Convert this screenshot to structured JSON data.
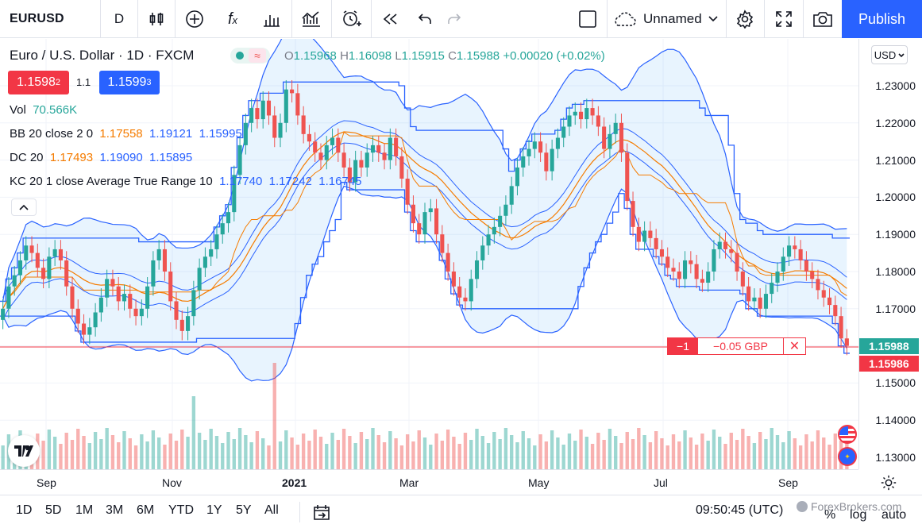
{
  "toolbar": {
    "symbol": "EURUSD",
    "interval": "D",
    "layout_name": "Unnamed",
    "publish_label": "Publish"
  },
  "legend": {
    "title": "Euro / U.S. Dollar · 1D · FXCM",
    "ohlc": {
      "o_label": "O",
      "o": "1.15968",
      "h_label": "H",
      "h": "1.16098",
      "l_label": "L",
      "l": "1.15915",
      "c_label": "C",
      "c": "1.15988",
      "change": "+0.00020 (+0.02%)"
    },
    "sell_price": "1.1598",
    "sell_sup": "2",
    "spread": "1.1",
    "buy_price": "1.1599",
    "buy_sup": "3",
    "vol_label": "Vol",
    "vol_value": "70.566K",
    "bb_label": "BB 20 close 2 0",
    "bb_values": [
      "1.17558",
      "1.19121",
      "1.15995"
    ],
    "dc_label": "DC 20",
    "dc_values": [
      "1.17493",
      "1.19090",
      "1.15895"
    ],
    "kc_label": "KC 20 1 close Average True Range 10",
    "kc_values": [
      "1.17740",
      "1.17242",
      "1.16745"
    ]
  },
  "price_axis": {
    "currency": "USD",
    "labels": [
      "1.23000",
      "1.22000",
      "1.21000",
      "1.20000",
      "1.19000",
      "1.18000",
      "1.17000",
      "1.16000",
      "1.15000",
      "1.14000",
      "1.13000"
    ],
    "last_price": "1.15988",
    "order_price": "1.15986"
  },
  "time_axis": {
    "labels": [
      "Sep",
      "Nov",
      "2021",
      "Mar",
      "May",
      "Jul",
      "Sep"
    ]
  },
  "order": {
    "qty": "−1",
    "pnl": "−0.05 GBP"
  },
  "bottom": {
    "ranges": [
      "1D",
      "5D",
      "1M",
      "3M",
      "6M",
      "YTD",
      "1Y",
      "5Y",
      "All"
    ],
    "clock": "09:50:45 (UTC)",
    "percent": "%",
    "log": "log",
    "auto": "auto",
    "watermark": "ForexBrokers.com"
  },
  "colors": {
    "up": "#26a69a",
    "down": "#ef5350",
    "accent": "#2962ff",
    "orange": "#f57c00"
  },
  "chart_data": {
    "type": "candlestick",
    "symbol": "EURUSD",
    "timeframe": "1D",
    "y_range": [
      1.125,
      1.238
    ],
    "close_series": [
      1.17,
      1.176,
      1.179,
      1.183,
      1.187,
      1.185,
      1.181,
      1.178,
      1.184,
      1.186,
      1.183,
      1.176,
      1.17,
      1.166,
      1.163,
      1.165,
      1.169,
      1.173,
      1.178,
      1.176,
      1.172,
      1.174,
      1.17,
      1.168,
      1.17,
      1.176,
      1.183,
      1.186,
      1.18,
      1.172,
      1.167,
      1.164,
      1.168,
      1.175,
      1.181,
      1.184,
      1.186,
      1.19,
      1.193,
      1.196,
      1.206,
      1.214,
      1.22,
      1.224,
      1.221,
      1.226,
      1.222,
      1.216,
      1.22,
      1.229,
      1.228,
      1.222,
      1.217,
      1.215,
      1.212,
      1.21,
      1.214,
      1.216,
      1.212,
      1.208,
      1.204,
      1.21,
      1.208,
      1.212,
      1.214,
      1.212,
      1.21,
      1.216,
      1.211,
      1.205,
      1.198,
      1.193,
      1.19,
      1.196,
      1.197,
      1.19,
      1.185,
      1.18,
      1.176,
      1.173,
      1.172,
      1.178,
      1.183,
      1.187,
      1.19,
      1.192,
      1.195,
      1.198,
      1.203,
      1.208,
      1.211,
      1.213,
      1.215,
      1.212,
      1.207,
      1.213,
      1.216,
      1.219,
      1.222,
      1.223,
      1.221,
      1.224,
      1.222,
      1.219,
      1.213,
      1.217,
      1.22,
      1.212,
      1.199,
      1.192,
      1.188,
      1.191,
      1.189,
      1.186,
      1.184,
      1.181,
      1.18,
      1.178,
      1.183,
      1.182,
      1.178,
      1.177,
      1.18,
      1.186,
      1.188,
      1.186,
      1.185,
      1.18,
      1.176,
      1.172,
      1.173,
      1.17,
      1.174,
      1.177,
      1.18,
      1.184,
      1.187,
      1.186,
      1.183,
      1.18,
      1.178,
      1.175,
      1.173,
      1.171,
      1.168,
      1.162,
      1.16
    ]
  }
}
